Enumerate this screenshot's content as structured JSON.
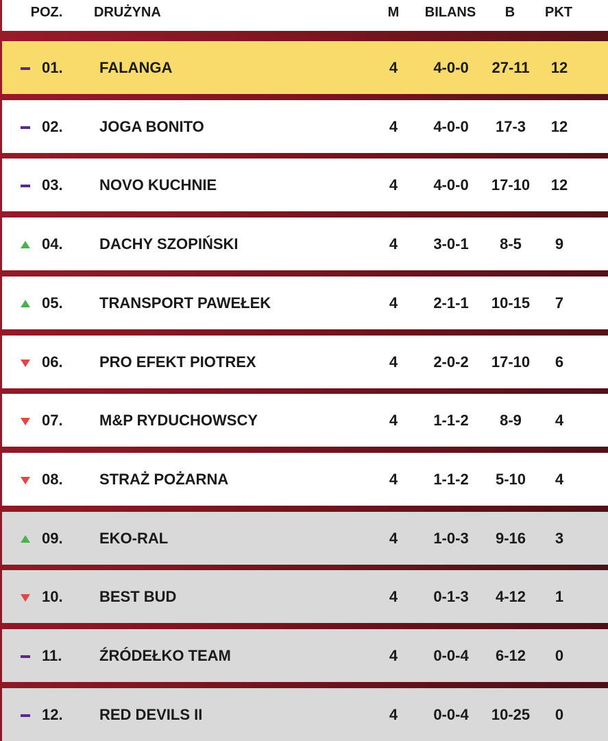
{
  "header": {
    "position": "POZ.",
    "team": "DRUŻYNA",
    "matches": "M",
    "record": "BILANS",
    "goals": "B",
    "points": "PKT"
  },
  "table": {
    "rows": [
      {
        "trend": "same",
        "position": "01.",
        "team": "FALANGA",
        "matches": 4,
        "record": "4-0-0",
        "goals": "27-11",
        "points": 12
      },
      {
        "trend": "same",
        "position": "02.",
        "team": "JOGA BONITO",
        "matches": 4,
        "record": "4-0-0",
        "goals": "17-3",
        "points": 12
      },
      {
        "trend": "same",
        "position": "03.",
        "team": "NOVO KUCHNIE",
        "matches": 4,
        "record": "4-0-0",
        "goals": "17-10",
        "points": 12
      },
      {
        "trend": "up",
        "position": "04.",
        "team": "DACHY SZOPIŃSKI",
        "matches": 4,
        "record": "3-0-1",
        "goals": "8-5",
        "points": 9
      },
      {
        "trend": "up",
        "position": "05.",
        "team": "TRANSPORT PAWEŁEK",
        "matches": 4,
        "record": "2-1-1",
        "goals": "10-15",
        "points": 7
      },
      {
        "trend": "down",
        "position": "06.",
        "team": "PRO EFEKT PIOTREX",
        "matches": 4,
        "record": "2-0-2",
        "goals": "17-10",
        "points": 6
      },
      {
        "trend": "down",
        "position": "07.",
        "team": "M&P RYDUCHOWSCY",
        "matches": 4,
        "record": "1-1-2",
        "goals": "8-9",
        "points": 4
      },
      {
        "trend": "down",
        "position": "08.",
        "team": "STRAŻ POŻARNA",
        "matches": 4,
        "record": "1-1-2",
        "goals": "5-10",
        "points": 4
      },
      {
        "trend": "up",
        "position": "09.",
        "team": "EKO-RAL",
        "matches": 4,
        "record": "1-0-3",
        "goals": "9-16",
        "points": 3
      },
      {
        "trend": "down",
        "position": "10.",
        "team": "BEST BUD",
        "matches": 4,
        "record": "0-1-3",
        "goals": "4-12",
        "points": 1
      },
      {
        "trend": "same",
        "position": "11.",
        "team": "ŹRÓDEŁKO TEAM",
        "matches": 4,
        "record": "0-0-4",
        "goals": "6-12",
        "points": 0
      },
      {
        "trend": "same",
        "position": "12.",
        "team": "RED DEVILS II",
        "matches": 4,
        "record": "0-0-4",
        "goals": "10-25",
        "points": 0
      }
    ]
  }
}
